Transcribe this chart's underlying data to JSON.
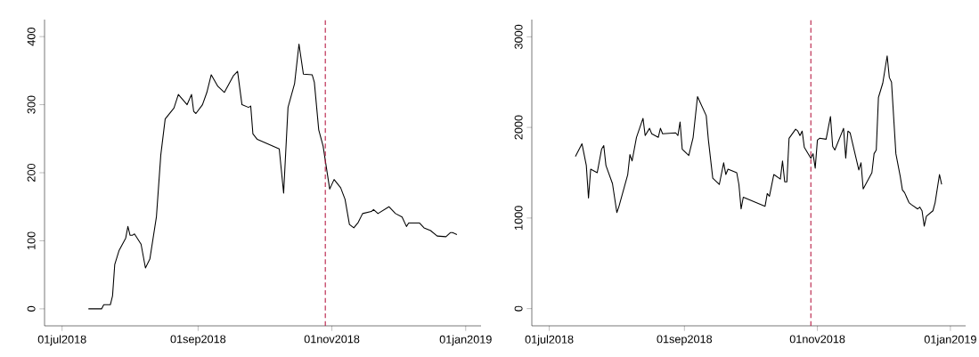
{
  "chart_data": [
    {
      "type": "line",
      "color": "#000000",
      "x": [
        "2018-07-13",
        "2018-07-19",
        "2018-07-20",
        "2018-07-23",
        "2018-07-24",
        "2018-07-25",
        "2018-07-27",
        "2018-07-30",
        "2018-07-31",
        "2018-08-01",
        "2018-08-02",
        "2018-08-03",
        "2018-08-06",
        "2018-08-08",
        "2018-08-10",
        "2018-08-13",
        "2018-08-15",
        "2018-08-17",
        "2018-08-19",
        "2018-08-21",
        "2018-08-23",
        "2018-08-27",
        "2018-08-29",
        "2018-08-30",
        "2018-08-31",
        "2018-09-03",
        "2018-09-05",
        "2018-09-07",
        "2018-09-10",
        "2018-09-13",
        "2018-09-17",
        "2018-09-19",
        "2018-09-21",
        "2018-09-24",
        "2018-09-25",
        "2018-09-26",
        "2018-09-28",
        "2018-10-08",
        "2018-10-10",
        "2018-10-12",
        "2018-10-15",
        "2018-10-17",
        "2018-10-19",
        "2018-10-23",
        "2018-10-24",
        "2018-10-26",
        "2018-10-28",
        "2018-10-31",
        "2018-11-02",
        "2018-11-05",
        "2018-11-07",
        "2018-11-09",
        "2018-11-11",
        "2018-11-13",
        "2018-11-15",
        "2018-11-19",
        "2018-11-20",
        "2018-11-22",
        "2018-11-27",
        "2018-11-30",
        "2018-12-03",
        "2018-12-05",
        "2018-12-06",
        "2018-12-11",
        "2018-12-13",
        "2018-12-16",
        "2018-12-19",
        "2018-12-23",
        "2018-12-25",
        "2018-12-26",
        "2018-12-28"
      ],
      "values": [
        0,
        0,
        6,
        6,
        19,
        65,
        86,
        104,
        121,
        108,
        108,
        110,
        95,
        60,
        73,
        135,
        226,
        279,
        287,
        295,
        315,
        300,
        315,
        290,
        287,
        300,
        318,
        344,
        327,
        318,
        342,
        349,
        300,
        296,
        298,
        257,
        249,
        235,
        170,
        296,
        331,
        389,
        345,
        344,
        333,
        263,
        239,
        176,
        190,
        178,
        161,
        124,
        119,
        127,
        140,
        143,
        146,
        140,
        150,
        140,
        135,
        121,
        126,
        126,
        119,
        115,
        107,
        106,
        112,
        112,
        109
      ],
      "xlim": [
        "2018-06-23",
        "2019-01-08"
      ],
      "ylim": [
        -25,
        425
      ],
      "xticks": [
        {
          "value": "2018-07-01",
          "label": "01jul2018"
        },
        {
          "value": "2018-09-01",
          "label": "01sep2018"
        },
        {
          "value": "2018-11-01",
          "label": "01nov2018"
        },
        {
          "value": "2019-01-01",
          "label": "01jan2019"
        }
      ],
      "yticks": [
        0,
        100,
        200,
        300,
        400
      ],
      "ref_lines": [
        {
          "axis": "x",
          "value": "2018-10-29",
          "color": "#b5163f",
          "line_style": "dashed"
        }
      ]
    },
    {
      "type": "line",
      "color": "#000000",
      "x": [
        "2018-07-13",
        "2018-07-16",
        "2018-07-18",
        "2018-07-19",
        "2018-07-20",
        "2018-07-23",
        "2018-07-25",
        "2018-07-26",
        "2018-07-27",
        "2018-07-30",
        "2018-08-01",
        "2018-08-02",
        "2018-08-06",
        "2018-08-07",
        "2018-08-08",
        "2018-08-10",
        "2018-08-13",
        "2018-08-14",
        "2018-08-16",
        "2018-08-17",
        "2018-08-20",
        "2018-08-21",
        "2018-08-22",
        "2018-08-28",
        "2018-08-29",
        "2018-08-30",
        "2018-08-31",
        "2018-09-03",
        "2018-09-05",
        "2018-09-07",
        "2018-09-11",
        "2018-09-12",
        "2018-09-14",
        "2018-09-17",
        "2018-09-19",
        "2018-09-20",
        "2018-09-21",
        "2018-09-25",
        "2018-09-26",
        "2018-09-27",
        "2018-09-28",
        "2018-10-08",
        "2018-10-09",
        "2018-10-10",
        "2018-10-12",
        "2018-10-15",
        "2018-10-16",
        "2018-10-17",
        "2018-10-18",
        "2018-10-19",
        "2018-10-22",
        "2018-10-23",
        "2018-10-24",
        "2018-10-25",
        "2018-10-26",
        "2018-10-29",
        "2018-10-30",
        "2018-10-31",
        "2018-11-01",
        "2018-11-02",
        "2018-11-05",
        "2018-11-07",
        "2018-11-08",
        "2018-11-09",
        "2018-11-13",
        "2018-11-14",
        "2018-11-15",
        "2018-11-16",
        "2018-11-20",
        "2018-11-21",
        "2018-11-22",
        "2018-11-26",
        "2018-11-27",
        "2018-11-28",
        "2018-11-29",
        "2018-12-01",
        "2018-12-03",
        "2018-12-04",
        "2018-12-05",
        "2018-12-07",
        "2018-12-09",
        "2018-12-10",
        "2018-12-11",
        "2018-12-13",
        "2018-12-14",
        "2018-12-17",
        "2018-12-18",
        "2018-12-19",
        "2018-12-20",
        "2018-12-21",
        "2018-12-24",
        "2018-12-25",
        "2018-12-27",
        "2018-12-28"
      ],
      "values": [
        1680,
        1820,
        1580,
        1220,
        1540,
        1500,
        1760,
        1800,
        1580,
        1380,
        1060,
        1130,
        1480,
        1700,
        1630,
        1890,
        2100,
        1910,
        1990,
        1930,
        1890,
        1990,
        1930,
        1940,
        1910,
        2060,
        1760,
        1690,
        1890,
        2340,
        2130,
        1860,
        1440,
        1370,
        1610,
        1480,
        1540,
        1500,
        1370,
        1100,
        1230,
        1130,
        1270,
        1240,
        1480,
        1430,
        1630,
        1400,
        1400,
        1880,
        1980,
        1960,
        1910,
        1960,
        1780,
        1660,
        1710,
        1550,
        1860,
        1880,
        1870,
        2120,
        1790,
        1750,
        1990,
        1660,
        1960,
        1940,
        1530,
        1610,
        1320,
        1500,
        1710,
        1750,
        2330,
        2490,
        2790,
        2550,
        2500,
        1710,
        1460,
        1310,
        1280,
        1170,
        1150,
        1100,
        1120,
        1080,
        910,
        1020,
        1080,
        1170,
        1480,
        1370
      ],
      "xlim": [
        "2018-06-23",
        "2019-01-08"
      ],
      "ylim": [
        -190,
        3190
      ],
      "xticks": [
        {
          "value": "2018-07-01",
          "label": "01jul2018"
        },
        {
          "value": "2018-09-01",
          "label": "01sep2018"
        },
        {
          "value": "2018-11-01",
          "label": "01nov2018"
        },
        {
          "value": "2019-01-01",
          "label": "01jan2019"
        }
      ],
      "yticks": [
        0,
        1000,
        2000,
        3000
      ],
      "ref_lines": [
        {
          "axis": "x",
          "value": "2018-10-29",
          "color": "#b5163f",
          "line_style": "dashed"
        }
      ]
    }
  ]
}
